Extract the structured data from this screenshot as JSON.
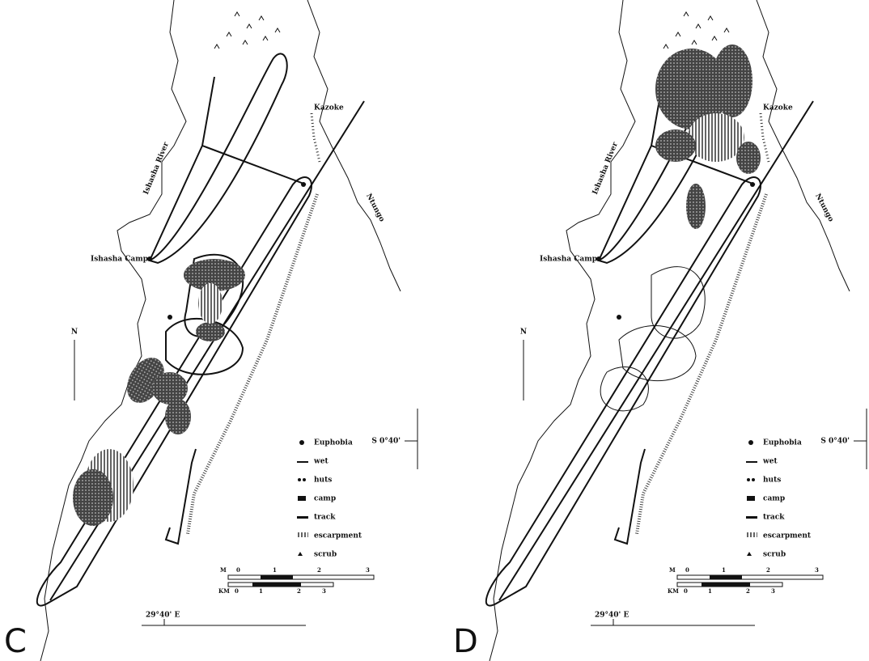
{
  "panels": [
    {
      "label": "C",
      "places": [
        "Kazoke",
        "Ishasha River",
        "Ntungo",
        "Ishasha Camp"
      ],
      "north": "N",
      "latitude": "S 0°40'",
      "longitude": "29°40' E",
      "legend": [
        "Euphobia",
        "wet",
        "huts",
        "camp",
        "track",
        "escarpment",
        "scrub"
      ],
      "scale": {
        "miles": [
          "M",
          "0",
          "1",
          "2",
          "3"
        ],
        "km": [
          "KM",
          "0",
          "1",
          "2",
          "3"
        ]
      }
    },
    {
      "label": "D",
      "places": [
        "Kazoke",
        "Ishasha River",
        "Ntungo",
        "Ishasha Camp"
      ],
      "north": "N",
      "latitude": "S 0°40'",
      "longitude": "29°40' E",
      "legend": [
        "Euphobia",
        "wet",
        "huts",
        "camp",
        "track",
        "escarpment",
        "scrub"
      ],
      "scale": {
        "miles": [
          "M",
          "0",
          "1",
          "2",
          "3"
        ],
        "km": [
          "KM",
          "0",
          "1",
          "2",
          "3"
        ]
      }
    }
  ]
}
